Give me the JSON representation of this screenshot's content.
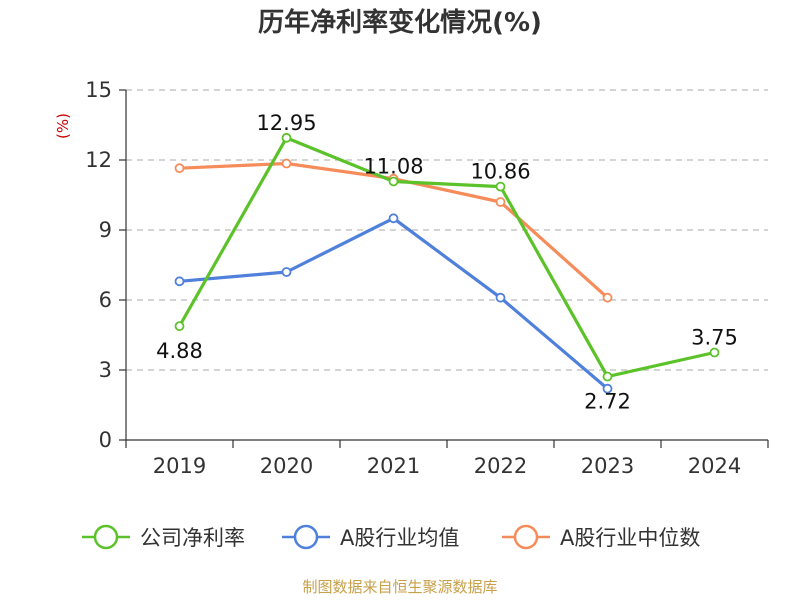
{
  "chart_data": {
    "type": "line",
    "title": "历年净利率变化情况(%)",
    "unit_label": "(%)",
    "categories": [
      "2019",
      "2020",
      "2021",
      "2022",
      "2023",
      "2024"
    ],
    "ylim": [
      0,
      15
    ],
    "yticks": [
      0,
      3,
      6,
      9,
      12,
      15
    ],
    "grid": "horizontal-dashed",
    "legend_position": "bottom",
    "series": [
      {
        "name": "公司净利率",
        "color": "#5cc22a",
        "values": [
          4.88,
          12.95,
          11.08,
          10.86,
          2.72,
          3.75
        ],
        "labels": [
          "4.88",
          "12.95",
          "11.08",
          "10.86",
          "2.72",
          "3.75"
        ]
      },
      {
        "name": "A股行业均值",
        "color": "#4f80dc",
        "values": [
          6.8,
          7.2,
          9.5,
          6.1,
          2.2,
          null
        ]
      },
      {
        "name": "A股行业中位数",
        "color": "#f58c5a",
        "values": [
          11.65,
          11.85,
          11.2,
          10.2,
          6.1,
          null
        ]
      }
    ]
  },
  "source_note": "制图数据来自恒生聚源数据库"
}
